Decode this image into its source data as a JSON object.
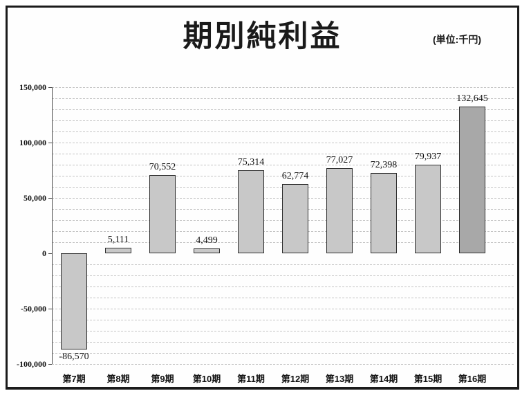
{
  "header": {
    "title": "期別純利益",
    "unit_label": "(単位:千円)"
  },
  "chart_data": {
    "type": "bar",
    "title": "期別純利益",
    "subtitle": "",
    "unit": "千円",
    "categories": [
      "第7期",
      "第8期",
      "第9期",
      "第10期",
      "第11期",
      "第12期",
      "第13期",
      "第14期",
      "第15期",
      "第16期"
    ],
    "values": [
      -86570,
      5111,
      70552,
      4499,
      75314,
      62774,
      77027,
      72398,
      79937,
      132645
    ],
    "value_labels": [
      "-86,570",
      "5,111",
      "70,552",
      "4,499",
      "75,314",
      "62,774",
      "77,027",
      "72,398",
      "79,937",
      "132,645"
    ],
    "xlabel": "",
    "ylabel": "",
    "y_axis": {
      "min": -100000,
      "max": 150000,
      "major_step": 50000,
      "minor_step": 10000,
      "tick_labels": [
        "150,000",
        "100,000",
        "50,000",
        "0",
        "-50,000",
        "-100,000"
      ]
    },
    "grid": true,
    "legend": false,
    "colors": {
      "bar_fill": "#c8c8c8",
      "bar_fill_highlight_last": "#a8a8a8",
      "bar_border": "#2e2e2e",
      "gridline": "#c3c3c3",
      "axis": "#4a4a4a",
      "frame_border": "#1b1b1b",
      "text": "#111111"
    }
  }
}
